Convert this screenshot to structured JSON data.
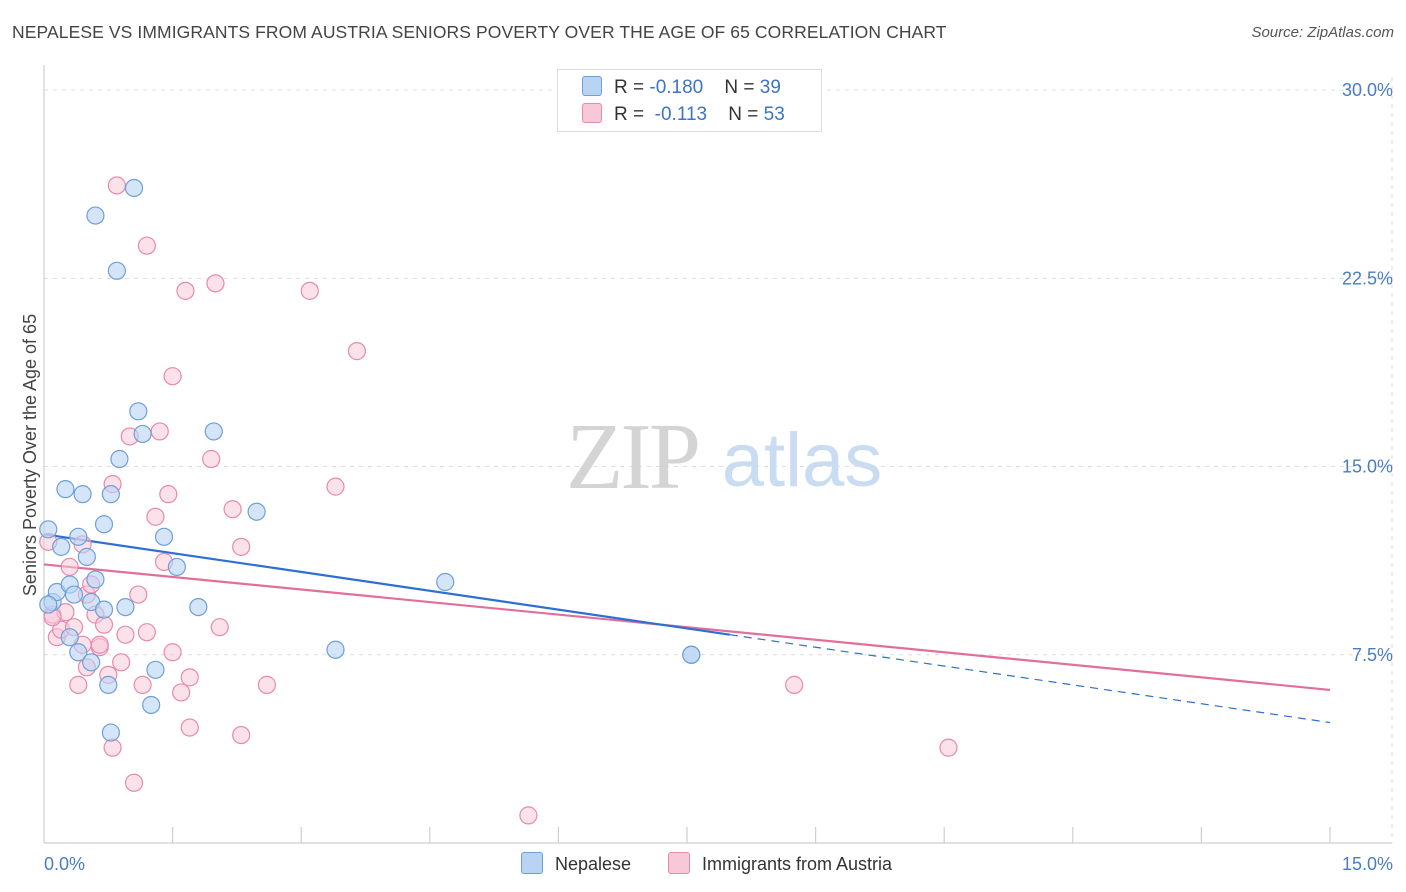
{
  "header": {
    "title": "NEPALESE VS IMMIGRANTS FROM AUSTRIA SENIORS POVERTY OVER THE AGE OF 65 CORRELATION CHART",
    "source": "Source: ZipAtlas.com"
  },
  "watermark": {
    "zip": "ZIP",
    "atlas": "atlas"
  },
  "legend": {
    "rows": [
      {
        "r_label": "R = ",
        "r_value": "-0.180",
        "n_label": "N = ",
        "n_value": "39"
      },
      {
        "r_label": "R = ",
        "r_value": "-0.113",
        "n_label": "N = ",
        "n_value": "53"
      }
    ]
  },
  "bottom_legend": {
    "nepalese": "Nepalese",
    "austria": "Immigrants from Austria"
  },
  "colors": {
    "nepalese_fill": "#b9d3f3",
    "nepalese_stroke": "#6f9fd8",
    "nepalese_line": "#2e6fd1",
    "austria_fill": "#f8c8d8",
    "austria_stroke": "#e88aab",
    "austria_line": "#e0709a",
    "tick_text": "#4a7cc4"
  },
  "chart_data": {
    "type": "scatter",
    "title": "NEPALESE VS IMMIGRANTS FROM AUSTRIA SENIORS POVERTY OVER THE AGE OF 65 CORRELATION CHART",
    "xlabel": "",
    "ylabel": "Seniors Poverty Over the Age of 65",
    "xlim": [
      0,
      15
    ],
    "ylim": [
      0,
      31
    ],
    "x_tick_labels": [
      {
        "value": 0,
        "label": "0.0%"
      },
      {
        "value": 15,
        "label": "15.0%"
      }
    ],
    "y_ticks": [
      {
        "value": 7.5,
        "label": "7.5%"
      },
      {
        "value": 15,
        "label": "15.0%"
      },
      {
        "value": 22.5,
        "label": "22.5%"
      },
      {
        "value": 30,
        "label": "30.0%"
      }
    ],
    "x_minor_ticks": [
      1.5,
      3,
      4.5,
      6,
      7.5,
      9,
      10.5,
      12,
      13.5,
      15
    ],
    "series": [
      {
        "name": "Nepalese",
        "r": -0.18,
        "n": 39,
        "points": [
          [
            0.05,
            12.5
          ],
          [
            0.1,
            9.6
          ],
          [
            0.15,
            10.0
          ],
          [
            0.2,
            11.8
          ],
          [
            0.25,
            14.1
          ],
          [
            0.3,
            10.3
          ],
          [
            0.3,
            8.2
          ],
          [
            0.35,
            9.9
          ],
          [
            0.4,
            7.6
          ],
          [
            0.4,
            12.2
          ],
          [
            0.45,
            13.9
          ],
          [
            0.5,
            11.4
          ],
          [
            0.55,
            9.6
          ],
          [
            0.55,
            7.2
          ],
          [
            0.6,
            10.5
          ],
          [
            0.6,
            25.0
          ],
          [
            0.7,
            12.7
          ],
          [
            0.7,
            9.3
          ],
          [
            0.75,
            6.3
          ],
          [
            0.78,
            4.4
          ],
          [
            0.78,
            13.9
          ],
          [
            0.85,
            22.8
          ],
          [
            0.88,
            15.3
          ],
          [
            0.95,
            9.4
          ],
          [
            1.05,
            26.1
          ],
          [
            1.1,
            17.2
          ],
          [
            1.15,
            16.3
          ],
          [
            1.25,
            5.5
          ],
          [
            1.3,
            6.9
          ],
          [
            1.4,
            12.2
          ],
          [
            1.55,
            11.0
          ],
          [
            1.8,
            9.4
          ],
          [
            1.98,
            16.4
          ],
          [
            2.48,
            13.2
          ],
          [
            3.4,
            7.7
          ],
          [
            4.68,
            10.4
          ],
          [
            7.55,
            7.5
          ],
          [
            7.55,
            7.5
          ],
          [
            0.05,
            9.5
          ]
        ],
        "trend": {
          "x0": 0,
          "y0": 12.3,
          "x1": 8.0,
          "y1": 8.3,
          "dash_x1": 15.0,
          "dash_y1": 4.8
        }
      },
      {
        "name": "Immigrants from Austria",
        "r": -0.113,
        "n": 53,
        "points": [
          [
            0.05,
            12.0
          ],
          [
            0.1,
            9.1
          ],
          [
            0.15,
            8.2
          ],
          [
            0.2,
            8.5
          ],
          [
            0.25,
            9.2
          ],
          [
            0.3,
            11.0
          ],
          [
            0.35,
            8.6
          ],
          [
            0.4,
            6.3
          ],
          [
            0.45,
            11.9
          ],
          [
            0.5,
            9.9
          ],
          [
            0.5,
            7.0
          ],
          [
            0.55,
            10.3
          ],
          [
            0.6,
            9.1
          ],
          [
            0.65,
            7.8
          ],
          [
            0.65,
            7.9
          ],
          [
            0.7,
            8.7
          ],
          [
            0.75,
            6.7
          ],
          [
            0.8,
            14.3
          ],
          [
            0.8,
            3.8
          ],
          [
            0.85,
            26.2
          ],
          [
            0.9,
            7.2
          ],
          [
            0.95,
            8.3
          ],
          [
            1.0,
            16.2
          ],
          [
            1.05,
            2.4
          ],
          [
            1.1,
            9.9
          ],
          [
            1.15,
            6.3
          ],
          [
            1.2,
            8.4
          ],
          [
            1.2,
            23.8
          ],
          [
            1.3,
            13.0
          ],
          [
            1.35,
            16.4
          ],
          [
            1.4,
            11.2
          ],
          [
            1.45,
            13.9
          ],
          [
            1.5,
            7.6
          ],
          [
            1.5,
            18.6
          ],
          [
            1.6,
            6.0
          ],
          [
            1.65,
            22.0
          ],
          [
            1.7,
            6.6
          ],
          [
            1.7,
            4.6
          ],
          [
            1.95,
            15.3
          ],
          [
            2.0,
            22.3
          ],
          [
            2.05,
            8.6
          ],
          [
            2.2,
            13.3
          ],
          [
            2.3,
            4.3
          ],
          [
            2.3,
            11.8
          ],
          [
            2.6,
            6.3
          ],
          [
            3.1,
            22.0
          ],
          [
            3.4,
            14.2
          ],
          [
            3.65,
            19.6
          ],
          [
            5.65,
            1.1
          ],
          [
            8.75,
            6.3
          ],
          [
            10.55,
            3.8
          ],
          [
            0.1,
            9.0
          ],
          [
            0.45,
            7.9
          ]
        ],
        "trend": {
          "x0": 0,
          "y0": 11.1,
          "x1": 15.0,
          "y1": 6.1
        }
      }
    ]
  }
}
